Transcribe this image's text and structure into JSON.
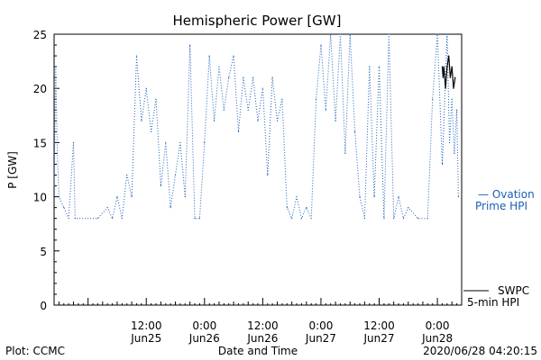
{
  "chart_data": {
    "type": "line",
    "title": "Hemispheric Power [GW]",
    "xlabel": "Date and Time",
    "ylabel": "P [GW]",
    "ylim": [
      0,
      25
    ],
    "y_ticks": [
      0,
      5,
      10,
      15,
      20,
      25
    ],
    "x_range_hours": [
      "2020-06-24 17:00",
      "2020-06-28 05:00"
    ],
    "x_ticks": [
      {
        "time": "2020-06-25 12:00",
        "line1": "12:00",
        "line2": "Jun25"
      },
      {
        "time": "2020-06-26 00:00",
        "line1": "0:00",
        "line2": "Jun26"
      },
      {
        "time": "2020-06-26 12:00",
        "line1": "12:00",
        "line2": "Jun26"
      },
      {
        "time": "2020-06-27 00:00",
        "line1": "0:00",
        "line2": "Jun27"
      },
      {
        "time": "2020-06-27 12:00",
        "line1": "12:00",
        "line2": "Jun27"
      },
      {
        "time": "2020-06-28 00:00",
        "line1": "0:00",
        "line2": "Jun28"
      }
    ],
    "grid": false,
    "series": [
      {
        "name": "Ovation Prime HPI",
        "color": "#1a5fb4",
        "style": "dotted",
        "points": [
          [
            "2020-06-24 17:00",
            11
          ],
          [
            "2020-06-24 17:20",
            22
          ],
          [
            "2020-06-24 17:40",
            14
          ],
          [
            "2020-06-24 18:00",
            10
          ],
          [
            "2020-06-24 19:00",
            9
          ],
          [
            "2020-06-24 20:00",
            8
          ],
          [
            "2020-06-24 21:00",
            15
          ],
          [
            "2020-06-24 21:20",
            8
          ],
          [
            "2020-06-25 02:00",
            8
          ],
          [
            "2020-06-25 04:00",
            9
          ],
          [
            "2020-06-25 05:00",
            8
          ],
          [
            "2020-06-25 06:00",
            10
          ],
          [
            "2020-06-25 07:00",
            8
          ],
          [
            "2020-06-25 08:00",
            12
          ],
          [
            "2020-06-25 09:00",
            10
          ],
          [
            "2020-06-25 10:00",
            23
          ],
          [
            "2020-06-25 11:00",
            17
          ],
          [
            "2020-06-25 12:00",
            20
          ],
          [
            "2020-06-25 13:00",
            16
          ],
          [
            "2020-06-25 14:00",
            19
          ],
          [
            "2020-06-25 15:00",
            11
          ],
          [
            "2020-06-25 16:00",
            15
          ],
          [
            "2020-06-25 17:00",
            9
          ],
          [
            "2020-06-25 18:00",
            12
          ],
          [
            "2020-06-25 19:00",
            15
          ],
          [
            "2020-06-25 20:00",
            10
          ],
          [
            "2020-06-25 21:00",
            24
          ],
          [
            "2020-06-25 22:00",
            8
          ],
          [
            "2020-06-25 23:00",
            8
          ],
          [
            "2020-06-26 00:00",
            15
          ],
          [
            "2020-06-26 01:00",
            23
          ],
          [
            "2020-06-26 02:00",
            17
          ],
          [
            "2020-06-26 03:00",
            22
          ],
          [
            "2020-06-26 04:00",
            18
          ],
          [
            "2020-06-26 05:00",
            21
          ],
          [
            "2020-06-26 06:00",
            23
          ],
          [
            "2020-06-26 07:00",
            16
          ],
          [
            "2020-06-26 08:00",
            21
          ],
          [
            "2020-06-26 09:00",
            18
          ],
          [
            "2020-06-26 10:00",
            21
          ],
          [
            "2020-06-26 11:00",
            17
          ],
          [
            "2020-06-26 12:00",
            20
          ],
          [
            "2020-06-26 13:00",
            12
          ],
          [
            "2020-06-26 14:00",
            21
          ],
          [
            "2020-06-26 15:00",
            17
          ],
          [
            "2020-06-26 16:00",
            19
          ],
          [
            "2020-06-26 17:00",
            9
          ],
          [
            "2020-06-26 18:00",
            8
          ],
          [
            "2020-06-26 19:00",
            10
          ],
          [
            "2020-06-26 20:00",
            8
          ],
          [
            "2020-06-26 21:00",
            9
          ],
          [
            "2020-06-26 22:00",
            8
          ],
          [
            "2020-06-26 23:00",
            19
          ],
          [
            "2020-06-27 00:00",
            24
          ],
          [
            "2020-06-27 01:00",
            18
          ],
          [
            "2020-06-27 02:00",
            25
          ],
          [
            "2020-06-27 03:00",
            17
          ],
          [
            "2020-06-27 04:00",
            25
          ],
          [
            "2020-06-27 05:00",
            14
          ],
          [
            "2020-06-27 06:00",
            25
          ],
          [
            "2020-06-27 07:00",
            16
          ],
          [
            "2020-06-27 08:00",
            10
          ],
          [
            "2020-06-27 09:00",
            8
          ],
          [
            "2020-06-27 10:00",
            22
          ],
          [
            "2020-06-27 11:00",
            10
          ],
          [
            "2020-06-27 12:00",
            22
          ],
          [
            "2020-06-27 13:00",
            8
          ],
          [
            "2020-06-27 14:00",
            25
          ],
          [
            "2020-06-27 15:00",
            8
          ],
          [
            "2020-06-27 16:00",
            10
          ],
          [
            "2020-06-27 17:00",
            8
          ],
          [
            "2020-06-27 18:00",
            9
          ],
          [
            "2020-06-27 20:00",
            8
          ],
          [
            "2020-06-27 22:00",
            8
          ],
          [
            "2020-06-27 23:00",
            19
          ],
          [
            "2020-06-28 00:00",
            25
          ],
          [
            "2020-06-28 01:00",
            13
          ],
          [
            "2020-06-28 02:00",
            25
          ],
          [
            "2020-06-28 02:30",
            15
          ],
          [
            "2020-06-28 03:00",
            19
          ],
          [
            "2020-06-28 03:30",
            14
          ],
          [
            "2020-06-28 04:00",
            18
          ],
          [
            "2020-06-28 04:20",
            10
          ]
        ]
      },
      {
        "name": "SWPC 5-min HPI",
        "color": "#000000",
        "style": "solid",
        "points": [
          [
            "2020-06-28 01:00",
            22
          ],
          [
            "2020-06-28 01:10",
            21
          ],
          [
            "2020-06-28 01:20",
            22
          ],
          [
            "2020-06-28 01:40",
            20
          ],
          [
            "2020-06-28 02:00",
            22
          ],
          [
            "2020-06-28 02:20",
            23
          ],
          [
            "2020-06-28 02:40",
            21
          ],
          [
            "2020-06-28 03:00",
            22
          ],
          [
            "2020-06-28 03:20",
            20
          ],
          [
            "2020-06-28 03:40",
            21
          ]
        ]
      }
    ],
    "legend": [
      {
        "line1": "— Ovation",
        "line2": "Prime HPI",
        "series": 0
      },
      {
        "line1": "SWPC",
        "line2": "5-min HPI",
        "series": 1
      }
    ],
    "legend_position": "right"
  },
  "footer": {
    "left": "Plot: CCMC",
    "center": "Date and Time",
    "right": "2020/06/28 04:20:15"
  },
  "colors": {
    "ovation": "#1a5fb4",
    "swpc": "#000000"
  }
}
